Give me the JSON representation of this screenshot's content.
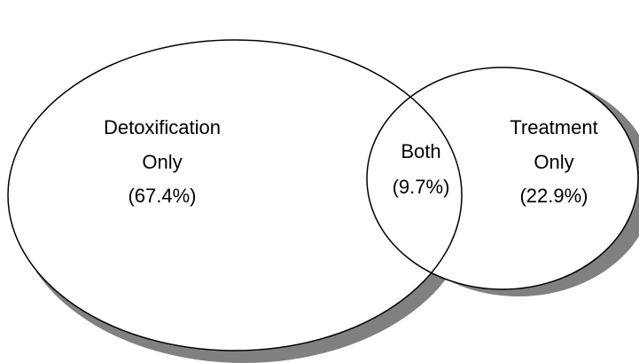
{
  "colors": {
    "background": "#ffffff",
    "circle_fill": "#ffffff",
    "circle_stroke": "#000000",
    "shadow": "#808080"
  },
  "regions": {
    "detox_only": {
      "line1": "Detoxification",
      "line2": "Only",
      "percent": "(67.4%)"
    },
    "both": {
      "line1": "Both",
      "percent": "(9.7%)"
    },
    "treatment_only": {
      "line1": "Treatment",
      "line2": "Only",
      "percent": "(22.9%)"
    }
  }
}
